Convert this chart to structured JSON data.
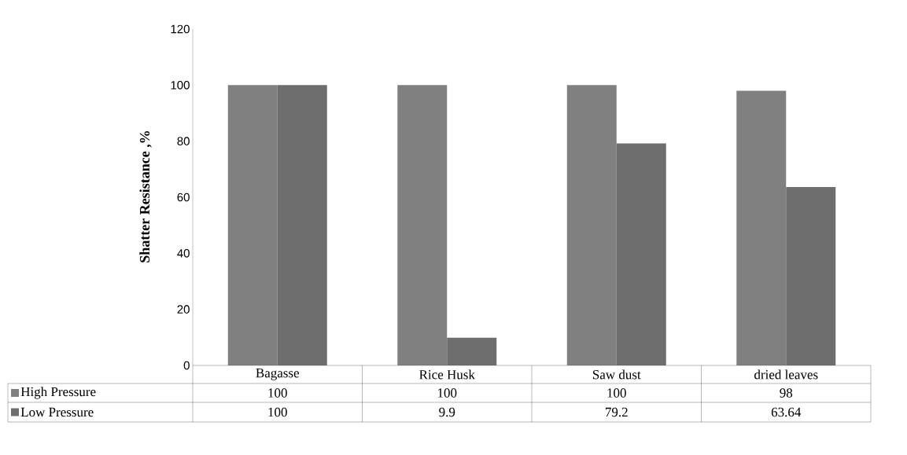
{
  "chart_data": {
    "type": "bar",
    "ylabel": "Shatter Resistance ,%",
    "categories": [
      "Bagasse",
      "Rice Husk",
      "Saw dust",
      "dried leaves"
    ],
    "series": [
      {
        "name": "High Pressure",
        "color": "#808080",
        "values": [
          100,
          100,
          100,
          98
        ]
      },
      {
        "name": "Low Pressure",
        "color": "#6e6e6e",
        "values": [
          100,
          9.9,
          79.2,
          63.64
        ]
      }
    ],
    "ylim": [
      0,
      120
    ],
    "yticks": [
      0,
      20,
      40,
      60,
      80,
      100,
      120
    ],
    "data_labels": true,
    "legend": "bottom",
    "grid": false
  }
}
